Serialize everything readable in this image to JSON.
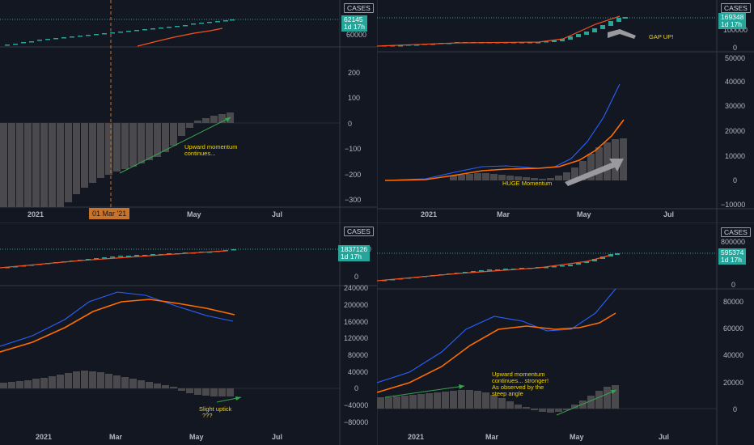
{
  "symbol_label": "CASES",
  "countdown": "1d 17h",
  "panels": [
    {
      "id": "top-left",
      "price": "62145",
      "upper_axis": [
        "60000"
      ],
      "lower_axis": [
        "200",
        "100",
        "0",
        "−100",
        "−200",
        "−300"
      ],
      "time_axis": [
        "2021",
        "May",
        "Jul"
      ],
      "crosshair_date": "01 Mar '21",
      "annotations": [
        "Upward momentum",
        "continues..."
      ]
    },
    {
      "id": "top-right",
      "price": "169348",
      "upper_axis": [
        "100000",
        "0"
      ],
      "lower_axis": [
        "50000",
        "40000",
        "30000",
        "20000",
        "10000",
        "0",
        "−10000"
      ],
      "time_axis": [
        "2021",
        "Mar",
        "May",
        "Jul"
      ],
      "annotations": [
        "GAP UP!",
        "HUGE Momentum"
      ]
    },
    {
      "id": "bottom-left",
      "price": "1837126",
      "upper_axis": [
        "1000000",
        "0"
      ],
      "lower_axis": [
        "240000",
        "200000",
        "160000",
        "120000",
        "80000",
        "40000",
        "0",
        "−40000",
        "−80000"
      ],
      "time_axis": [
        "2021",
        "Mar",
        "May",
        "Jul"
      ],
      "annotations": [
        "Slight uptick",
        "???"
      ]
    },
    {
      "id": "bottom-right",
      "price": "595374",
      "upper_axis": [
        "800000",
        "400000",
        "0"
      ],
      "lower_axis": [
        "80000",
        "60000",
        "40000",
        "20000",
        "0"
      ],
      "time_axis": [
        "2021",
        "Mar",
        "May",
        "Jul"
      ],
      "annotations": [
        "Upward momentum",
        "continues... stronger!",
        "As observed by the",
        "steep angle"
      ]
    }
  ]
}
